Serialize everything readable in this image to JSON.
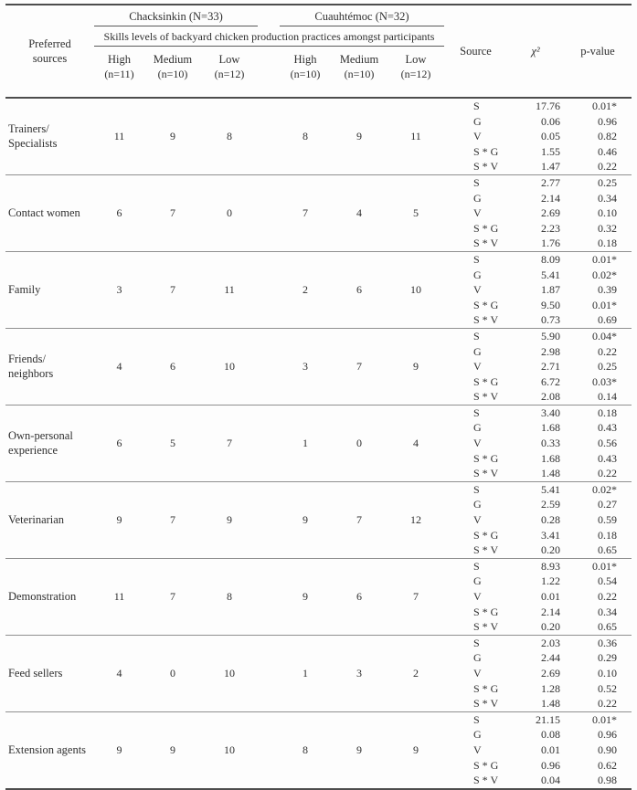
{
  "header": {
    "preferred_sources_line1": "Preferred",
    "preferred_sources_line2": "sources",
    "skills_banner": "Skills levels of backyard chicken production practices amongst participants",
    "group1": {
      "title": "Chacksinkin (N=33)",
      "cols": [
        {
          "level": "High",
          "n": "(n=11)"
        },
        {
          "level": "Medium",
          "n": "(n=10)"
        },
        {
          "level": "Low",
          "n": "(n=12)"
        }
      ]
    },
    "group2": {
      "title": "Cuauhtémoc (N=32)",
      "cols": [
        {
          "level": "High",
          "n": "(n=10)"
        },
        {
          "level": "Medium",
          "n": "(n=10)"
        },
        {
          "level": "Low",
          "n": "(n=12)"
        }
      ]
    },
    "source": "Source",
    "chi_square": "χ²",
    "p_value": "p-value"
  },
  "rows": [
    {
      "label_lines": [
        "Trainers/",
        "Specialists"
      ],
      "counts": [
        11,
        9,
        8,
        8,
        9,
        11
      ],
      "stats": [
        {
          "source": "S",
          "chi": "17.76",
          "p": "0.01*"
        },
        {
          "source": "G",
          "chi": "0.06",
          "p": "0.96"
        },
        {
          "source": "V",
          "chi": "0.05",
          "p": "0.82"
        },
        {
          "source": "S * G",
          "chi": "1.55",
          "p": "0.46"
        },
        {
          "source": "S * V",
          "chi": "1.47",
          "p": "0.22"
        }
      ]
    },
    {
      "label_lines": [
        "Contact women"
      ],
      "counts": [
        6,
        7,
        0,
        7,
        4,
        5
      ],
      "stats": [
        {
          "source": "S",
          "chi": "2.77",
          "p": "0.25"
        },
        {
          "source": "G",
          "chi": "2.14",
          "p": "0.34"
        },
        {
          "source": "V",
          "chi": "2.69",
          "p": "0.10"
        },
        {
          "source": "S * G",
          "chi": "2.23",
          "p": "0.32"
        },
        {
          "source": "S * V",
          "chi": "1.76",
          "p": "0.18"
        }
      ]
    },
    {
      "label_lines": [
        "Family"
      ],
      "counts": [
        3,
        7,
        11,
        2,
        6,
        10
      ],
      "stats": [
        {
          "source": "S",
          "chi": "8.09",
          "p": "0.01*"
        },
        {
          "source": "G",
          "chi": "5.41",
          "p": "0.02*"
        },
        {
          "source": "V",
          "chi": "1.87",
          "p": "0.39"
        },
        {
          "source": "S * G",
          "chi": "9.50",
          "p": "0.01*"
        },
        {
          "source": "S * V",
          "chi": "0.73",
          "p": "0.69"
        }
      ]
    },
    {
      "label_lines": [
        "Friends/",
        "neighbors"
      ],
      "counts": [
        4,
        6,
        10,
        3,
        7,
        9
      ],
      "stats": [
        {
          "source": "S",
          "chi": "5.90",
          "p": "0.04*"
        },
        {
          "source": "G",
          "chi": "2.98",
          "p": "0.22"
        },
        {
          "source": "V",
          "chi": "2.71",
          "p": "0.25"
        },
        {
          "source": "S * G",
          "chi": "6.72",
          "p": "0.03*"
        },
        {
          "source": "S * V",
          "chi": "2.08",
          "p": "0.14"
        }
      ]
    },
    {
      "label_lines": [
        "Own-personal",
        "experience"
      ],
      "counts": [
        6,
        5,
        7,
        1,
        0,
        4
      ],
      "stats": [
        {
          "source": "S",
          "chi": "3.40",
          "p": "0.18"
        },
        {
          "source": "G",
          "chi": "1.68",
          "p": "0.43"
        },
        {
          "source": "V",
          "chi": "0.33",
          "p": "0.56"
        },
        {
          "source": "S * G",
          "chi": "1.68",
          "p": "0.43"
        },
        {
          "source": "S * V",
          "chi": "1.48",
          "p": "0.22"
        }
      ]
    },
    {
      "label_lines": [
        "Veterinarian"
      ],
      "counts": [
        9,
        7,
        9,
        9,
        7,
        12
      ],
      "stats": [
        {
          "source": "S",
          "chi": "5.41",
          "p": "0.02*"
        },
        {
          "source": "G",
          "chi": "2.59",
          "p": "0.27"
        },
        {
          "source": "V",
          "chi": "0.28",
          "p": "0.59"
        },
        {
          "source": "S * G",
          "chi": "3.41",
          "p": "0.18"
        },
        {
          "source": "S * V",
          "chi": "0.20",
          "p": "0.65"
        }
      ]
    },
    {
      "label_lines": [
        "Demonstration"
      ],
      "counts": [
        11,
        7,
        8,
        9,
        6,
        7
      ],
      "stats": [
        {
          "source": "S",
          "chi": "8.93",
          "p": "0.01*"
        },
        {
          "source": "G",
          "chi": "1.22",
          "p": "0.54"
        },
        {
          "source": "V",
          "chi": "0.01",
          "p": "0.22"
        },
        {
          "source": "S * G",
          "chi": "2.14",
          "p": "0.34"
        },
        {
          "source": "S * V",
          "chi": "0.20",
          "p": "0.65"
        }
      ]
    },
    {
      "label_lines": [
        "Feed sellers"
      ],
      "counts": [
        4,
        0,
        10,
        1,
        3,
        2
      ],
      "stats": [
        {
          "source": "S",
          "chi": "2.03",
          "p": "0.36"
        },
        {
          "source": "G",
          "chi": "2.44",
          "p": "0.29"
        },
        {
          "source": "V",
          "chi": "2.69",
          "p": "0.10"
        },
        {
          "source": "S * G",
          "chi": "1.28",
          "p": "0.52"
        },
        {
          "source": "S * V",
          "chi": "1.48",
          "p": "0.22"
        }
      ]
    },
    {
      "label_lines": [
        "Extension agents"
      ],
      "counts": [
        9,
        9,
        10,
        8,
        9,
        9
      ],
      "stats": [
        {
          "source": "S",
          "chi": "21.15",
          "p": "0.01*"
        },
        {
          "source": "G",
          "chi": "0.08",
          "p": "0.96"
        },
        {
          "source": "V",
          "chi": "0.01",
          "p": "0.90"
        },
        {
          "source": "S * G",
          "chi": "0.96",
          "p": "0.62"
        },
        {
          "source": "S * V",
          "chi": "0.04",
          "p": "0.98"
        }
      ]
    }
  ]
}
